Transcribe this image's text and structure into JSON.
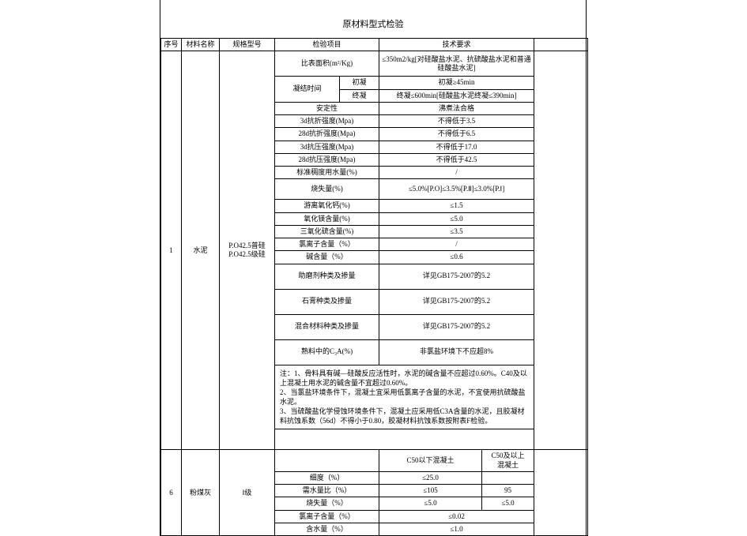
{
  "doc": {
    "title": "原材料型式检验",
    "headers": {
      "seq": "序号",
      "name": "材料名称",
      "spec": "规格型号",
      "item": "检验项目",
      "req": "技术要求"
    },
    "material1": {
      "seq": "1",
      "name": "水泥",
      "spec_a": "P.O42.5普硅",
      "spec_b": "P.O42.5级硅",
      "rows": {
        "surface": {
          "item": "比表面积(m²/Kg)",
          "req": "≤350m2/kg[对硅酸盐水泥、抗硫酸盐水泥和普通硅酸盐水泥]"
        },
        "setting_label": "凝结时间",
        "initial_set": {
          "sub": "初凝",
          "req": "初凝≥45min"
        },
        "final_set": {
          "sub": "终凝",
          "req": "终凝≤600min[硅酸盐水泥终凝≤390min]"
        },
        "stability": {
          "item": "安定性",
          "req": "沸煮法合格"
        },
        "flex3d": {
          "item": "3d抗折强度(Mpa)",
          "req": "不得低于3.5"
        },
        "flex28d": {
          "item": "28d抗折强度(Mpa)",
          "req": "不得低于6.5"
        },
        "comp3d": {
          "item": "3d抗压强度(Mpa)",
          "req": "不得低于17.0"
        },
        "comp28d": {
          "item": "28d抗压强度(Mpa)",
          "req": "不得低于42.5"
        },
        "stdwater": {
          "item": "标准稠度用水量(%)",
          "req": "/"
        },
        "loss": {
          "item": "烧失量(%)",
          "req": "≤5.0%[P.O]≤3.5%[P.Ⅱ]≤3.0%[P.Ⅰ]"
        },
        "freecao": {
          "item": "游离氧化钙(%)",
          "req": "≤1.5"
        },
        "mgo": {
          "item": "氧化镁含量(%)",
          "req": "≤5.0"
        },
        "so3": {
          "item": "三氧化硫含量(%)",
          "req": "≤3.5"
        },
        "cl": {
          "item": "氯离子含量（%）",
          "req": "/"
        },
        "alkali": {
          "item": "碱含量（%）",
          "req": "≤0.6"
        },
        "grindaid": {
          "item": "助磨剂种类及掺量",
          "req": "详见GB175-2007的5.2"
        },
        "gypsum": {
          "item": "石膏种类及掺量",
          "req": "详见GB175-2007的5.2"
        },
        "admix": {
          "item": "混合材料种类及掺量",
          "req": "详见GB175-2007的5.2"
        },
        "c3a": {
          "item": "熟料中的C₃A(%)",
          "req": "非氯盐环境下不应超8%"
        }
      },
      "note": "注：1、骨料具有碱—硅酸反应活性时，水泥的碱含量不应超过0.60%。C40及以上混凝土用水泥的碱含量不宜超过0.60%。\n2、当氯盐环境条件下，混凝土宜采用低氯离子含量的水泥，不宜使用抗硫酸盐水泥。\n3、当硫酸盐化学侵蚀环境条件下，混凝土应采用低C3A含量的水泥，且胶凝材料抗蚀系数（56d）不得小于0.80，胶凝材料抗蚀系数按附表F检验。"
    },
    "material2": {
      "seq": "6",
      "name": "粉煤灰",
      "spec": "Ⅰ级",
      "subheads": {
        "c50below": "C50以下混凝土",
        "c50above": "C50及以上\n混凝土"
      },
      "rows": {
        "fineness": {
          "item": "细度（%）",
          "req_a": "≤25.0"
        },
        "waterreq": {
          "item": "需水量比（%）",
          "req_a": "≤105",
          "req_b": "95"
        },
        "loss": {
          "item": "烧失量（%）",
          "req_a": "≤5.0",
          "req_b": "≤5.0"
        },
        "cl": {
          "item": "氯离子含量（%）",
          "req": "≤0.02"
        },
        "water": {
          "item": "含水量（%）",
          "req": "≤1.0"
        }
      }
    }
  }
}
